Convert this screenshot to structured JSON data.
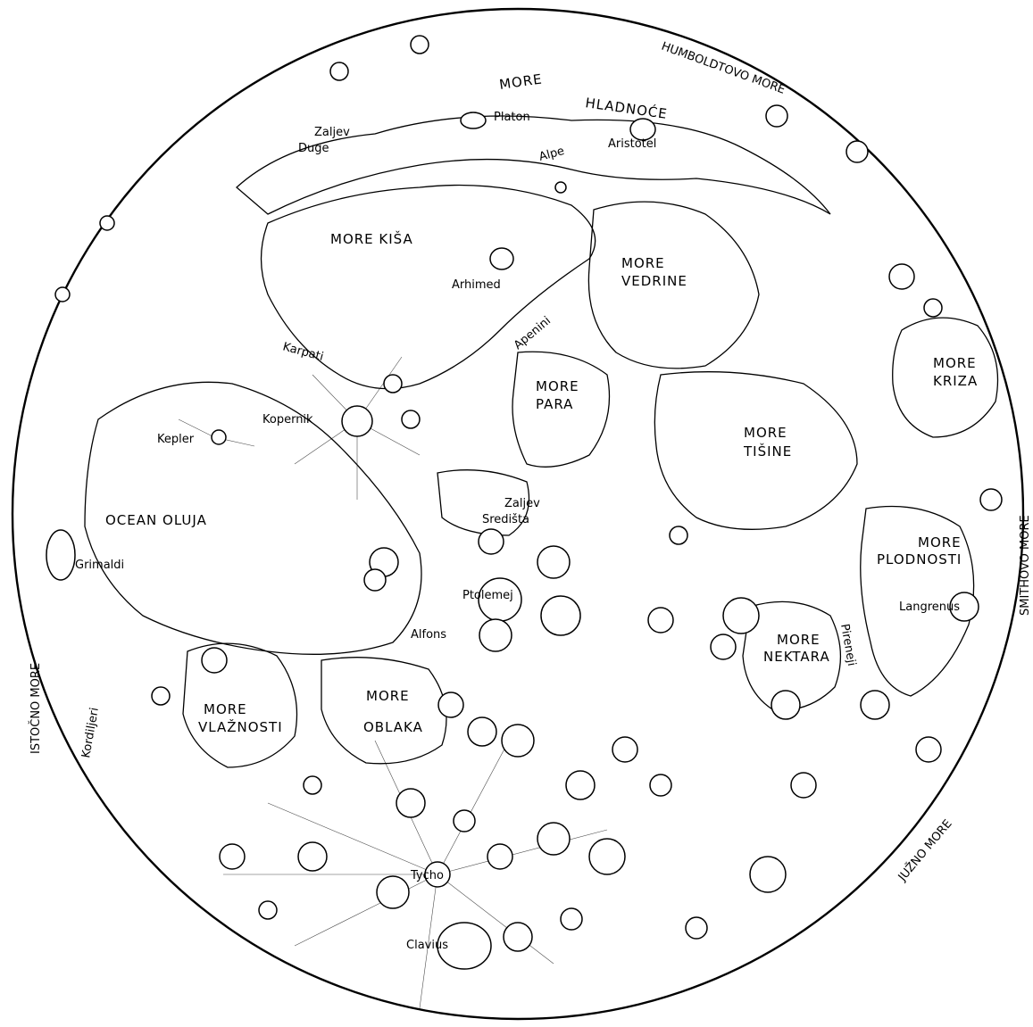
{
  "map": {
    "labels": {
      "humboldtovo_more": "HUMBOLDTOVO MORE",
      "more_hladnoce_1": "MORE",
      "more_hladnoce_2": "HLADNOĆE",
      "platon": "Platon",
      "zaljev_duge_1": "Zaljev",
      "zaljev_duge_2": "Duge",
      "alpe": "Alpe",
      "aristotel": "Aristotel",
      "more_kisa": "MORE  KIŠA",
      "arhimed": "Arhimed",
      "more_vedrine_1": "MORE",
      "more_vedrine_2": "VEDRINE",
      "apenini": "Apenini",
      "karpati": "Karpati",
      "more_para_1": "MORE",
      "more_para_2": "PARA",
      "more_kriza_1": "MORE",
      "more_kriza_2": "KRIZA",
      "kopernik": "Kopernik",
      "kepler": "Kepler",
      "more_tisine_1": "MORE",
      "more_tisine_2": "TIŠINE",
      "zaljev_sredista_1": "Zaljev",
      "zaljev_sredista_2": "Središta",
      "ocean_oluja": "OCEAN  OLUJA",
      "more_plodnosti_1": "MORE",
      "more_plodnosti_2": "PLODNOSTI",
      "smithovo_more": "SMITHOVO MORE",
      "grimaldi": "Grimaldi",
      "ptolemej": "Ptolemej",
      "langrenus": "Langrenus",
      "alfons": "Alfons",
      "more_nektara_1": "MORE",
      "more_nektara_2": "NEKTARA",
      "pireneji": "Pireneji",
      "istocno_more": "ISTOČNO MORE",
      "kordiljeri": "Kordiljeri",
      "more_vlaznosti_1": "MORE",
      "more_vlaznosti_2": "VLAŽNOSTI",
      "more_oblaka_1": "MORE",
      "more_oblaka_2": "OBLAKA",
      "juzno_more": "JUŽNO MORE",
      "tycho": "Tycho",
      "clavius": "Clavius"
    }
  }
}
